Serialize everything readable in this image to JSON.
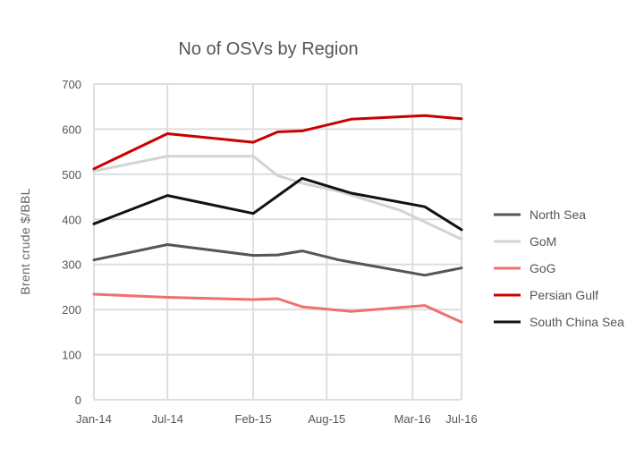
{
  "chart_data": {
    "type": "line",
    "title": "No of OSVs by Region",
    "ylabel": "Brent crude $/BBL",
    "xlabel": "",
    "ylim": [
      0,
      700
    ],
    "yticks": [
      0,
      100,
      200,
      300,
      400,
      500,
      600,
      700
    ],
    "x_tick_labels": [
      "Jan-14",
      "Jul-14",
      "Feb-15",
      "Aug-15",
      "Mar-16",
      "Jul-16"
    ],
    "x_tick_positions": [
      0,
      6,
      13,
      19,
      26,
      30
    ],
    "grid": true,
    "legend_position": "right",
    "series": [
      {
        "name": "North Sea",
        "color": "#555555",
        "points": [
          [
            0,
            310
          ],
          [
            6,
            344
          ],
          [
            13,
            320
          ],
          [
            15,
            321
          ],
          [
            17,
            330
          ],
          [
            20,
            310
          ],
          [
            27,
            276
          ],
          [
            30,
            292
          ]
        ]
      },
      {
        "name": "GoM",
        "color": "#d3d3d3",
        "points": [
          [
            0,
            507
          ],
          [
            6,
            540
          ],
          [
            13,
            540
          ],
          [
            15,
            497
          ],
          [
            17,
            480
          ],
          [
            20,
            462
          ],
          [
            25,
            420
          ],
          [
            30,
            356
          ]
        ]
      },
      {
        "name": "GoG",
        "color": "#f07070",
        "points": [
          [
            0,
            234
          ],
          [
            6,
            227
          ],
          [
            13,
            222
          ],
          [
            15,
            224
          ],
          [
            17,
            206
          ],
          [
            21,
            196
          ],
          [
            27,
            209
          ],
          [
            30,
            172
          ]
        ]
      },
      {
        "name": "Persian Gulf",
        "color": "#cc0000",
        "points": [
          [
            0,
            512
          ],
          [
            6,
            590
          ],
          [
            13,
            571
          ],
          [
            15,
            594
          ],
          [
            17,
            596
          ],
          [
            21,
            622
          ],
          [
            27,
            630
          ],
          [
            30,
            623
          ]
        ]
      },
      {
        "name": "South China Sea",
        "color": "#111111",
        "points": [
          [
            0,
            390
          ],
          [
            6,
            453
          ],
          [
            13,
            413
          ],
          [
            17,
            491
          ],
          [
            21,
            458
          ],
          [
            27,
            428
          ],
          [
            30,
            377
          ]
        ]
      }
    ]
  }
}
